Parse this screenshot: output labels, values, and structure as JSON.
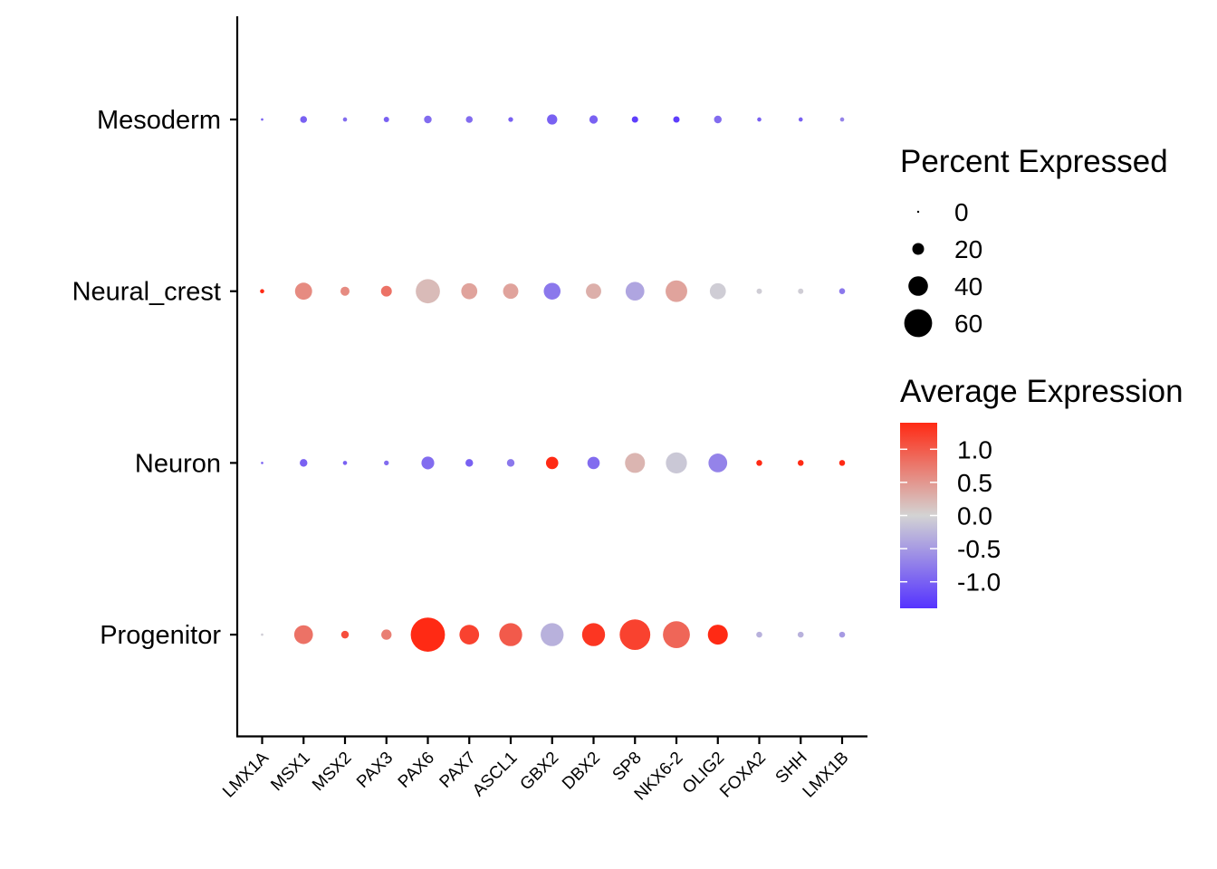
{
  "chart_data": {
    "type": "dotplot",
    "x_categories": [
      "LMX1A",
      "MSX1",
      "MSX2",
      "PAX3",
      "PAX6",
      "PAX7",
      "ASCL1",
      "GBX2",
      "DBX2",
      "SP8",
      "NKX6-2",
      "OLIG2",
      "FOXA2",
      "SHH",
      "LMX1B"
    ],
    "y_categories": [
      "Mesoderm",
      "Neural_crest",
      "Neuron",
      "Progenitor"
    ],
    "percent_expressed": [
      [
        0.5,
        4,
        1.5,
        2.5,
        5,
        4,
        2,
        9,
        6,
        3.5,
        3.5,
        5,
        1.5,
        1.5,
        1.5
      ],
      [
        1.5,
        25,
        7,
        10,
        50,
        22,
        20,
        24,
        20,
        30,
        40,
        22,
        2.5,
        2.5,
        3
      ],
      [
        0.5,
        5,
        1.5,
        2,
        14,
        5,
        5,
        13,
        13,
        34,
        38,
        30,
        3,
        3,
        3
      ],
      [
        0.5,
        30,
        5,
        9,
        100,
        33,
        45,
        45,
        45,
        80,
        62,
        34,
        3,
        3,
        3
      ]
    ],
    "average_expression": [
      [
        -1.0,
        -1.0,
        -0.9,
        -1.0,
        -0.9,
        -0.9,
        -1.0,
        -1.0,
        -1.0,
        -1.3,
        -1.3,
        -0.9,
        -1.0,
        -1.0,
        -0.7
      ],
      [
        1.4,
        0.6,
        0.6,
        0.8,
        0.2,
        0.4,
        0.4,
        -0.8,
        0.3,
        -0.4,
        0.4,
        -0.05,
        -0.05,
        -0.05,
        -0.8
      ],
      [
        -1.0,
        -1.0,
        -1.0,
        -0.9,
        -0.9,
        -1.0,
        -0.8,
        1.4,
        -0.9,
        0.25,
        -0.1,
        -0.7,
        1.4,
        1.4,
        1.4
      ],
      [
        -0.05,
        0.8,
        1.1,
        0.7,
        1.4,
        1.2,
        1.0,
        -0.3,
        1.3,
        1.2,
        0.9,
        1.4,
        -0.3,
        -0.3,
        -0.5
      ]
    ],
    "size_legend": {
      "title": "Percent Expressed",
      "breaks": [
        0,
        20,
        40,
        60
      ],
      "labels": [
        "0",
        "20",
        "40",
        "60"
      ]
    },
    "color_legend": {
      "title": "Average Expression",
      "breaks": [
        1.0,
        0.5,
        0.0,
        -0.5,
        -1.0
      ],
      "labels": [
        "1.0",
        "0.5",
        "0.0",
        "-0.5",
        "-1.0"
      ],
      "limits": [
        -1.4,
        1.4
      ],
      "low_color": "#5533ff",
      "mid_color": "#d3d3d3",
      "high_color": "#ff2a14"
    },
    "grid": false
  }
}
